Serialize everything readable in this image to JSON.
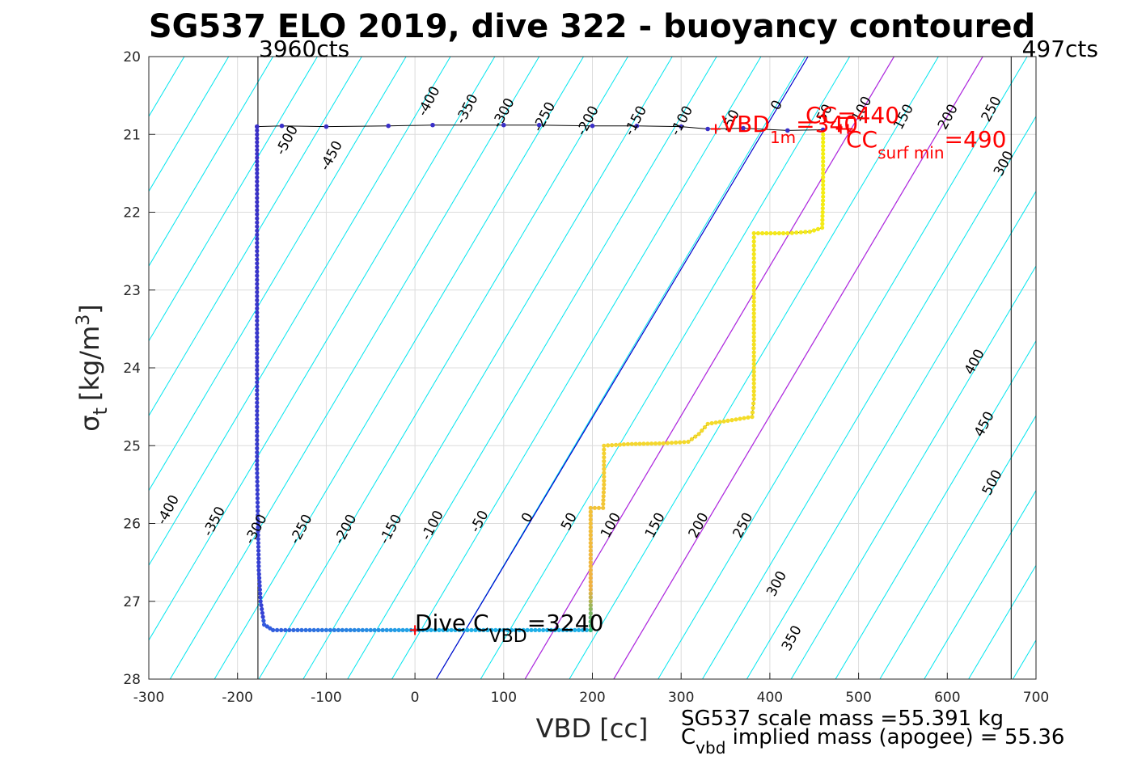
{
  "chart_data": {
    "type": "scatter",
    "title": "SG537 ELO 2019, dive 322 - buoyancy contoured",
    "xlabel": "VBD [cc]",
    "ylabel_main": "σ",
    "ylabel_sub": "t",
    "ylabel_unit": "[kg/m",
    "ylabel_sup": "3",
    "ylabel_close": "]",
    "xlim": [
      -300,
      700
    ],
    "ylim": [
      20,
      28
    ],
    "y_reversed": true,
    "grid": true,
    "x_ticks": [
      "-300",
      "-200",
      "-100",
      "0",
      "100",
      "200",
      "300",
      "400",
      "500",
      "600",
      "700"
    ],
    "y_ticks": [
      "20",
      "21",
      "22",
      "23",
      "24",
      "25",
      "26",
      "27",
      "28"
    ],
    "top_left_label": "3960cts",
    "top_right_label": "497cts",
    "cts_lines_x": [
      -177,
      672
    ],
    "contour_levels": [
      -500,
      -450,
      -400,
      -350,
      -300,
      -250,
      -200,
      -150,
      -100,
      -50,
      0,
      50,
      100,
      150,
      200,
      250,
      300,
      350,
      400,
      450,
      500
    ],
    "contour_labels": [
      {
        "text": "-400",
        "x": 20,
        "y": 20.6
      },
      {
        "text": "-350",
        "x": 63,
        "y": 20.7
      },
      {
        "text": "-300",
        "x": 104,
        "y": 20.75
      },
      {
        "text": "-250",
        "x": 150,
        "y": 20.8
      },
      {
        "text": "-200",
        "x": 199,
        "y": 20.85
      },
      {
        "text": "-150",
        "x": 253,
        "y": 20.85
      },
      {
        "text": "-100",
        "x": 305,
        "y": 20.85
      },
      {
        "text": "-50",
        "x": 360,
        "y": 20.85
      },
      {
        "text": "0",
        "x": 412,
        "y": 20.65
      },
      {
        "text": "50",
        "x": 466,
        "y": 20.75
      },
      {
        "text": "100",
        "x": 508,
        "y": 20.7
      },
      {
        "text": "150",
        "x": 555,
        "y": 20.8
      },
      {
        "text": "200",
        "x": 605,
        "y": 20.8
      },
      {
        "text": "250",
        "x": 654,
        "y": 20.7
      },
      {
        "text": "300",
        "x": 668,
        "y": 21.4
      },
      {
        "text": "-500",
        "x": -140,
        "y": 21.1
      },
      {
        "text": "-450",
        "x": -90,
        "y": 21.3
      },
      {
        "text": "-400",
        "x": -274,
        "y": 25.85
      },
      {
        "text": "-350",
        "x": -222,
        "y": 26.0
      },
      {
        "text": "-300",
        "x": -175,
        "y": 26.1
      },
      {
        "text": "-250",
        "x": -124,
        "y": 26.1
      },
      {
        "text": "-200",
        "x": -74,
        "y": 26.1
      },
      {
        "text": "-150",
        "x": -23,
        "y": 26.1
      },
      {
        "text": "-100",
        "x": 24,
        "y": 26.05
      },
      {
        "text": "-50",
        "x": 77,
        "y": 26.0
      },
      {
        "text": "0",
        "x": 131,
        "y": 25.95
      },
      {
        "text": "50",
        "x": 178,
        "y": 26.0
      },
      {
        "text": "100",
        "x": 225,
        "y": 26.05
      },
      {
        "text": "150",
        "x": 275,
        "y": 26.05
      },
      {
        "text": "200",
        "x": 324,
        "y": 26.05
      },
      {
        "text": "250",
        "x": 374,
        "y": 26.05
      },
      {
        "text": "300",
        "x": 412,
        "y": 26.8
      },
      {
        "text": "350",
        "x": 429,
        "y": 27.5
      },
      {
        "text": "400",
        "x": 635,
        "y": 23.95
      },
      {
        "text": "450",
        "x": 646,
        "y": 24.75
      },
      {
        "text": "500",
        "x": 655,
        "y": 25.5
      }
    ],
    "reference_lines": [
      {
        "name": "blue",
        "color": "#0000cc",
        "x_top": 443,
        "x_bottom": 24
      },
      {
        "name": "purple-1",
        "color": "#bb22dd",
        "x_top": 540,
        "x_bottom": 124
      },
      {
        "name": "purple-2",
        "color": "#bb22dd",
        "x_top": 640,
        "x_bottom": 224
      }
    ],
    "dive_profile": [
      [
        -178,
        20.9
      ],
      [
        -178,
        21.5
      ],
      [
        -178,
        22.5
      ],
      [
        -178,
        23.5
      ],
      [
        -178,
        24.5
      ],
      [
        -178,
        25.3
      ],
      [
        -177,
        26.0
      ],
      [
        -176,
        26.6
      ],
      [
        -174,
        27.0
      ],
      [
        -170,
        27.3
      ],
      [
        -160,
        27.37
      ],
      [
        -100,
        27.37
      ],
      [
        0,
        27.37
      ],
      [
        100,
        27.37
      ],
      [
        198,
        27.37
      ]
    ],
    "climb_profile": [
      [
        198,
        27.37
      ],
      [
        198,
        27.1
      ],
      [
        198,
        26.6
      ],
      [
        198,
        26.2
      ],
      [
        198,
        25.8
      ],
      [
        212,
        25.8
      ],
      [
        213,
        25.5
      ],
      [
        213,
        25.0
      ],
      [
        240,
        24.98
      ],
      [
        280,
        24.97
      ],
      [
        308,
        24.95
      ],
      [
        320,
        24.85
      ],
      [
        330,
        24.72
      ],
      [
        380,
        24.63
      ],
      [
        382,
        24.4
      ],
      [
        382,
        23.8
      ],
      [
        382,
        23.2
      ],
      [
        382,
        22.7
      ],
      [
        382,
        22.27
      ],
      [
        420,
        22.27
      ],
      [
        445,
        22.25
      ],
      [
        459,
        22.2
      ],
      [
        460,
        21.8
      ],
      [
        460,
        21.3
      ],
      [
        460,
        20.95
      ]
    ],
    "surface_line": [
      [
        -178,
        20.9
      ],
      [
        -150,
        20.89
      ],
      [
        -100,
        20.9
      ],
      [
        -30,
        20.89
      ],
      [
        20,
        20.88
      ],
      [
        100,
        20.88
      ],
      [
        140,
        20.88
      ],
      [
        200,
        20.89
      ],
      [
        250,
        20.89
      ],
      [
        300,
        20.9
      ],
      [
        330,
        20.93
      ],
      [
        370,
        20.92
      ],
      [
        420,
        20.95
      ],
      [
        460,
        20.94
      ]
    ],
    "markers": [
      {
        "name": "dive-c-vbd",
        "x": 0,
        "y": 27.37
      },
      {
        "name": "vbd-1m",
        "x": 339,
        "y": 20.93
      },
      {
        "name": "cc-marker-a",
        "x": 480,
        "y": 20.93
      },
      {
        "name": "cc-marker-b",
        "x": 488,
        "y": 20.93
      }
    ],
    "annotations": {
      "vbd_1m": {
        "main": "VBD",
        "sub": "1m",
        "value": "=340"
      },
      "cc": {
        "main": "CC",
        "value": "=440"
      },
      "cc_surf_min": {
        "main": "CC",
        "sub": "surf min",
        "value": "=490"
      },
      "dive_c_vbd": {
        "main": "Dive C",
        "sub": "VBD",
        "value": "=3240"
      }
    },
    "footer": {
      "scale_mass": "SG537 scale mass =55.391 kg",
      "implied_main": "C",
      "implied_sub": "vbd",
      "implied_text": " implied mass (apogee) = 55.36"
    }
  }
}
